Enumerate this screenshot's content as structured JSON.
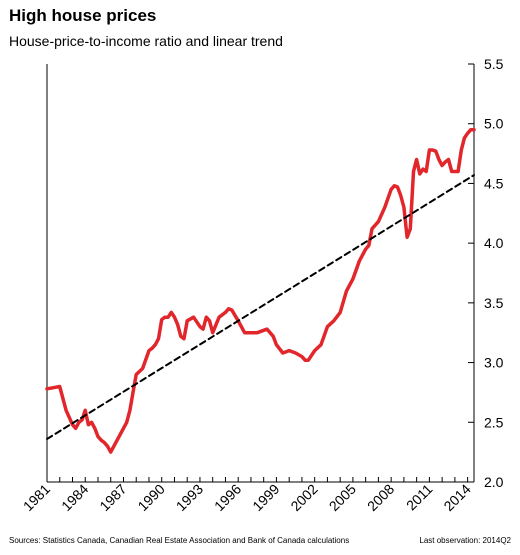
{
  "title": "High house prices",
  "subtitle": "House-price-to-income ratio and linear trend",
  "footer": {
    "sources": "Sources: Statistics Canada, Canadian Real Estate Association and Bank of Canada calculations",
    "last_observation": "Last observation: 2014Q2"
  },
  "colors": {
    "series": "#e1262c",
    "trend": "#000000"
  },
  "chart_data": {
    "type": "line",
    "title": "High house prices",
    "subtitle": "House-price-to-income ratio and linear trend",
    "xlim": [
      1981,
      2014.5
    ],
    "ylim": [
      2.0,
      5.5
    ],
    "y_ticks": [
      "2.0",
      "2.5",
      "3.0",
      "3.5",
      "4.0",
      "4.5",
      "5.0",
      "5.5"
    ],
    "x_ticks": [
      "1981",
      "1984",
      "1987",
      "1990",
      "1993",
      "1996",
      "1999",
      "2002",
      "2005",
      "2008",
      "2011",
      "2014"
    ],
    "y_axis_side": "right",
    "grid": false,
    "series": [
      {
        "style": "solid",
        "x": [
          1981.0,
          1981.5,
          1982.0,
          1982.5,
          1983.0,
          1983.25,
          1983.5,
          1983.75,
          1984.0,
          1984.25,
          1984.5,
          1984.75,
          1985.0,
          1985.25,
          1985.5,
          1985.75,
          1986.0,
          1986.5,
          1987.0,
          1987.25,
          1987.5,
          1987.75,
          1988.0,
          1988.5,
          1989.0,
          1989.25,
          1989.5,
          1989.75,
          1990.0,
          1990.25,
          1990.5,
          1990.75,
          1991.0,
          1991.25,
          1991.5,
          1991.75,
          1992.0,
          1992.5,
          1993.0,
          1993.25,
          1993.5,
          1993.75,
          1994.0,
          1994.5,
          1995.0,
          1995.25,
          1995.5,
          1996.0,
          1996.5,
          1997.0,
          1997.5,
          1998.0,
          1998.25,
          1998.5,
          1998.75,
          1999.0,
          1999.5,
          2000.0,
          2000.5,
          2001.0,
          2001.25,
          2001.5,
          2002.0,
          2002.5,
          2003.0,
          2003.5,
          2004.0,
          2004.5,
          2005.0,
          2005.5,
          2006.0,
          2006.25,
          2006.5,
          2007.0,
          2007.5,
          2008.0,
          2008.25,
          2008.5,
          2008.75,
          2009.0,
          2009.25,
          2009.5,
          2009.75,
          2010.0,
          2010.25,
          2010.5,
          2010.75,
          2011.0,
          2011.25,
          2011.5,
          2011.75,
          2012.0,
          2012.25,
          2012.5,
          2012.75,
          2013.0,
          2013.25,
          2013.5,
          2013.75,
          2014.0,
          2014.25,
          2014.5
        ],
        "y": [
          2.78,
          2.79,
          2.8,
          2.6,
          2.48,
          2.45,
          2.5,
          2.52,
          2.6,
          2.48,
          2.5,
          2.45,
          2.38,
          2.35,
          2.33,
          2.3,
          2.25,
          2.35,
          2.45,
          2.5,
          2.6,
          2.75,
          2.9,
          2.95,
          3.1,
          3.12,
          3.15,
          3.2,
          3.36,
          3.38,
          3.38,
          3.42,
          3.38,
          3.32,
          3.22,
          3.2,
          3.35,
          3.38,
          3.3,
          3.28,
          3.38,
          3.35,
          3.25,
          3.38,
          3.42,
          3.45,
          3.44,
          3.35,
          3.25,
          3.25,
          3.25,
          3.27,
          3.28,
          3.25,
          3.22,
          3.15,
          3.08,
          3.1,
          3.08,
          3.05,
          3.02,
          3.02,
          3.1,
          3.15,
          3.3,
          3.35,
          3.42,
          3.6,
          3.7,
          3.85,
          3.95,
          3.98,
          4.12,
          4.18,
          4.3,
          4.45,
          4.48,
          4.47,
          4.4,
          4.3,
          4.05,
          4.12,
          4.6,
          4.7,
          4.58,
          4.62,
          4.6,
          4.78,
          4.78,
          4.77,
          4.7,
          4.65,
          4.68,
          4.7,
          4.6,
          4.6,
          4.6,
          4.78,
          4.88,
          4.92,
          4.95,
          4.95
        ]
      },
      {
        "style": "dashed",
        "x": [
          1981.0,
          2014.5
        ],
        "y": [
          2.36,
          4.57
        ]
      }
    ]
  }
}
